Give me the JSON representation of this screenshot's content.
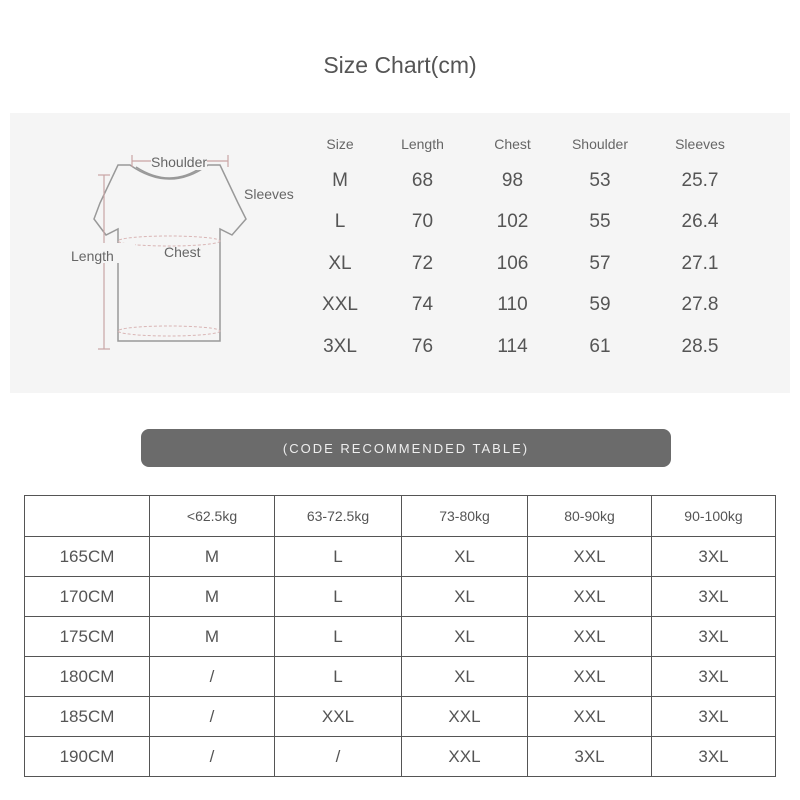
{
  "title": "Size Chart(cm)",
  "diagram": {
    "shoulder": "Shoulder",
    "sleeves": "Sleeves",
    "length": "Length",
    "chest": "Chest"
  },
  "size_table": {
    "headers": [
      "Size",
      "Length",
      "Chest",
      "Shoulder",
      "Sleeves"
    ],
    "rows": [
      [
        "M",
        "68",
        "98",
        "53",
        "25.7"
      ],
      [
        "L",
        "70",
        "102",
        "55",
        "26.4"
      ],
      [
        "XL",
        "72",
        "106",
        "57",
        "27.1"
      ],
      [
        "XXL",
        "74",
        "110",
        "59",
        "27.8"
      ],
      [
        "3XL",
        "76",
        "114",
        "61",
        "28.5"
      ]
    ]
  },
  "banner": "(CODE RECOMMENDED TABLE)",
  "recommend_table": {
    "headers": [
      "",
      "<62.5kg",
      "63-72.5kg",
      "73-80kg",
      "80-90kg",
      "90-100kg"
    ],
    "rows": [
      [
        "165CM",
        "M",
        "L",
        "XL",
        "XXL",
        "3XL"
      ],
      [
        "170CM",
        "M",
        "L",
        "XL",
        "XXL",
        "3XL"
      ],
      [
        "175CM",
        "M",
        "L",
        "XL",
        "XXL",
        "3XL"
      ],
      [
        "180CM",
        "/",
        "L",
        "XL",
        "XXL",
        "3XL"
      ],
      [
        "185CM",
        "/",
        "XXL",
        "XXL",
        "XXL",
        "3XL"
      ],
      [
        "190CM",
        "/",
        "/",
        "XXL",
        "3XL",
        "3XL"
      ]
    ]
  }
}
